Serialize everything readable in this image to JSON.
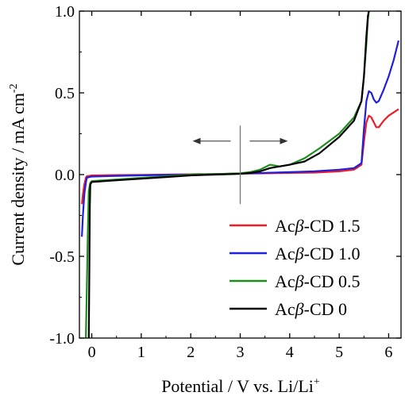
{
  "chart_data": {
    "type": "line",
    "xlabel_main": "Potential / V vs. Li/Li",
    "xlabel_sup": "+",
    "ylabel_main": "Current density / mA cm",
    "ylabel_sup": "-2",
    "xlim": [
      -0.25,
      6.25
    ],
    "ylim": [
      -1.0,
      1.0
    ],
    "xticks": [
      0,
      1,
      2,
      3,
      4,
      5,
      6
    ],
    "xtick_labels": [
      "0",
      "1",
      "2",
      "3",
      "4",
      "5",
      "6"
    ],
    "yticks": [
      -1.0,
      -0.5,
      0.0,
      0.5,
      1.0
    ],
    "ytick_labels": [
      "-1.0",
      "-0.5",
      "0.0",
      "0.5",
      "1.0"
    ],
    "grid": false,
    "legend_position": "bottom-right",
    "series": [
      {
        "name_prefix": "Ac",
        "name_greek": "β",
        "name_suffix": "-CD 1.5",
        "color": "#ee1c25",
        "x": [
          -0.2,
          -0.18,
          -0.15,
          -0.12,
          -0.1,
          -0.05,
          0.0,
          0.5,
          1.0,
          1.5,
          2.0,
          2.5,
          3.0,
          3.5,
          4.0,
          4.5,
          5.0,
          5.3,
          5.45,
          5.5,
          5.55,
          5.6,
          5.65,
          5.7,
          5.75,
          5.8,
          5.9,
          6.0,
          6.1,
          6.2
        ],
        "y": [
          -0.18,
          -0.12,
          -0.06,
          -0.02,
          -0.01,
          -0.008,
          -0.005,
          -0.003,
          -0.002,
          0.0,
          0.002,
          0.004,
          0.006,
          0.008,
          0.01,
          0.012,
          0.02,
          0.03,
          0.06,
          0.2,
          0.32,
          0.36,
          0.35,
          0.32,
          0.29,
          0.29,
          0.33,
          0.36,
          0.38,
          0.4
        ]
      },
      {
        "name_prefix": "Ac",
        "name_greek": "β",
        "name_suffix": "-CD 1.0",
        "color": "#1f1fdc",
        "x": [
          -0.2,
          -0.18,
          -0.15,
          -0.12,
          -0.1,
          -0.05,
          0.0,
          0.5,
          1.0,
          1.5,
          2.0,
          2.5,
          3.0,
          3.5,
          4.0,
          4.5,
          5.0,
          5.3,
          5.45,
          5.5,
          5.55,
          5.6,
          5.65,
          5.7,
          5.75,
          5.8,
          5.9,
          6.0,
          6.1,
          6.2
        ],
        "y": [
          -0.38,
          -0.25,
          -0.12,
          -0.05,
          -0.02,
          -0.015,
          -0.012,
          -0.008,
          -0.005,
          -0.002,
          0.0,
          0.003,
          0.006,
          0.01,
          0.015,
          0.02,
          0.03,
          0.04,
          0.07,
          0.28,
          0.45,
          0.51,
          0.5,
          0.46,
          0.44,
          0.45,
          0.52,
          0.6,
          0.7,
          0.82
        ]
      },
      {
        "name_prefix": "Ac",
        "name_greek": "β",
        "name_suffix": "-CD 0.5",
        "color": "#1b8f1b",
        "x": [
          -0.12,
          -0.1,
          -0.08,
          -0.06,
          -0.03,
          0.0,
          0.5,
          1.0,
          1.5,
          2.0,
          2.5,
          3.0,
          3.2,
          3.4,
          3.6,
          3.8,
          4.0,
          4.3,
          4.6,
          5.0,
          5.3,
          5.45,
          5.5,
          5.55,
          5.58,
          5.6,
          5.62
        ],
        "y": [
          -1.0,
          -0.7,
          -0.35,
          -0.1,
          -0.05,
          -0.04,
          -0.03,
          -0.02,
          -0.01,
          0.0,
          0.003,
          0.008,
          0.015,
          0.03,
          0.06,
          0.05,
          0.06,
          0.1,
          0.16,
          0.25,
          0.35,
          0.45,
          0.6,
          0.8,
          0.95,
          1.0,
          1.0
        ]
      },
      {
        "name_prefix": "Ac",
        "name_greek": "β",
        "name_suffix": "-CD 0",
        "color": "#000000",
        "x": [
          -0.06,
          -0.05,
          -0.04,
          -0.03,
          0.0,
          0.5,
          1.0,
          1.5,
          2.0,
          2.5,
          3.0,
          3.2,
          3.4,
          3.6,
          3.8,
          4.0,
          4.3,
          4.6,
          5.0,
          5.3,
          5.45,
          5.5,
          5.55,
          5.58,
          5.6,
          5.62
        ],
        "y": [
          -1.0,
          -0.6,
          -0.2,
          -0.06,
          -0.045,
          -0.035,
          -0.025,
          -0.015,
          -0.005,
          0.0,
          0.005,
          0.01,
          0.02,
          0.04,
          0.05,
          0.06,
          0.08,
          0.13,
          0.23,
          0.33,
          0.45,
          0.6,
          0.85,
          0.97,
          1.0,
          1.0
        ]
      }
    ]
  }
}
